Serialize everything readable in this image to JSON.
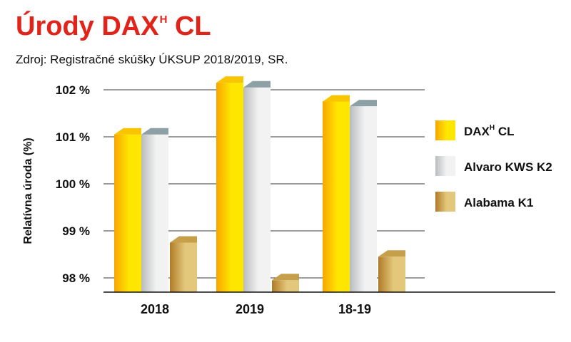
{
  "title": {
    "main": "Úrody DAX",
    "sup": "H",
    "suffix": " CL"
  },
  "subtitle": "Zdroj: Registračné skúšky ÚKSUP 2018/2019, SR.",
  "colors": {
    "title": "#e2231a",
    "dax": [
      "#f7a600",
      "#ffe600",
      "#f9c400"
    ],
    "alvaro": [
      "#b9bcbe",
      "#f2f2f2",
      "#8da0a6"
    ],
    "alabama": [
      "#b07a28",
      "#e3c77a",
      "#c59f4a"
    ]
  },
  "chart_data": {
    "type": "bar",
    "categories": [
      "2018",
      "2019",
      "18-19"
    ],
    "series": [
      {
        "name": "DAXH CL",
        "values": [
          101.05,
          102.15,
          101.75
        ]
      },
      {
        "name": "Alvaro KWS K2",
        "values": [
          101.05,
          102.05,
          101.65
        ]
      },
      {
        "name": "Alabama K1",
        "values": [
          98.75,
          97.95,
          98.45
        ]
      }
    ],
    "ylabel": "Relatívna úroda (%)",
    "yticks": [
      "98 %",
      "99 %",
      "100 %",
      "101 %",
      "102 %"
    ],
    "ytick_values": [
      98,
      99,
      100,
      101,
      102
    ],
    "ylim": [
      97.7,
      102.1
    ],
    "grid": true,
    "legend_position": "right",
    "legend": [
      {
        "name": "DAX",
        "sup": "H",
        "suffix": " CL"
      },
      {
        "name": "Alvaro KWS K2"
      },
      {
        "name": "Alabama K1"
      }
    ]
  }
}
